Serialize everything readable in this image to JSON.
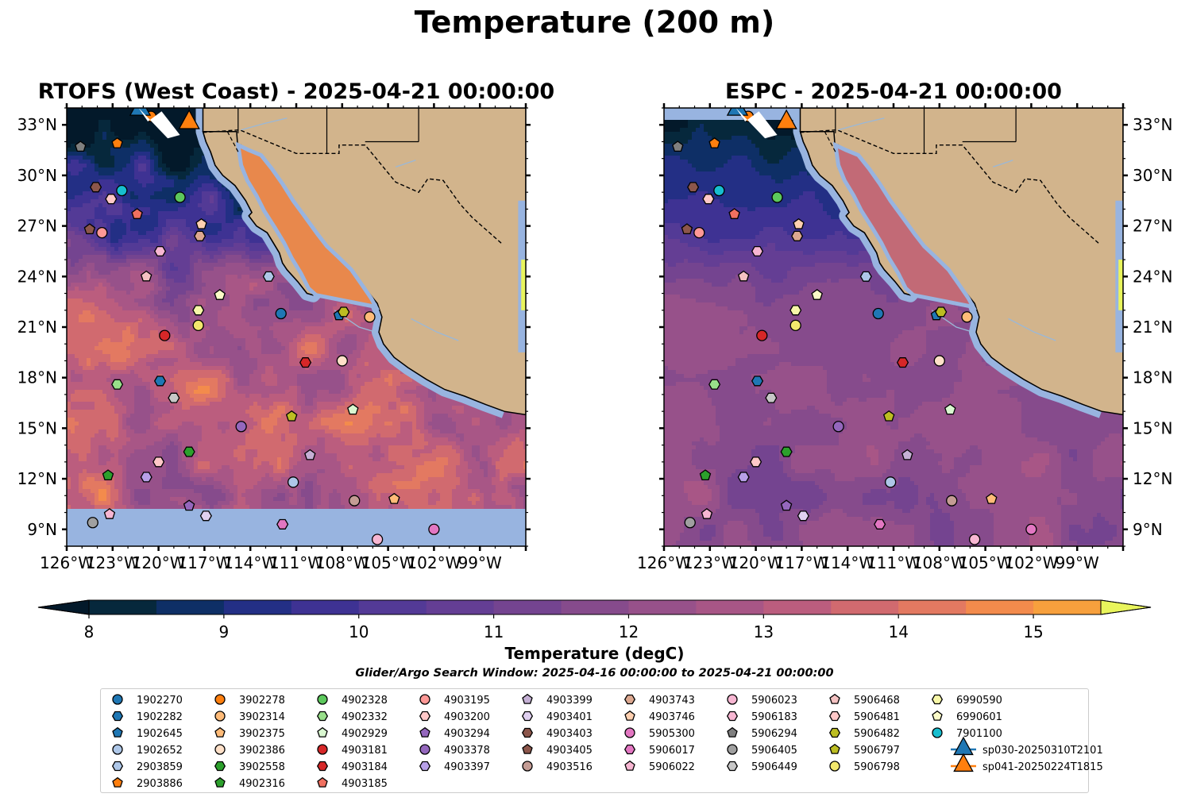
{
  "figure": {
    "suptitle": "Temperature (200 m)",
    "search_window": "Glider/Argo Search Window: 2025-04-16 00:00:00 to 2025-04-21 00:00:00",
    "colorbar_label": "Temperature (degC)"
  },
  "chart_data": [
    {
      "type": "heatmap",
      "title": "RTOFS (West Coast) - 2025-04-21 00:00:00",
      "model": "RTOFS",
      "field": "Temperature at 200 m",
      "xlabel": "",
      "ylabel": "",
      "xlim": [
        -126,
        -96
      ],
      "ylim": [
        8,
        34
      ],
      "x_ticks": [
        "126°W",
        "123°W",
        "120°W",
        "117°W",
        "114°W",
        "111°W",
        "108°W",
        "105°W",
        "102°W",
        "99°W"
      ],
      "y_ticks": [
        "9°N",
        "12°N",
        "15°N",
        "18°N",
        "21°N",
        "24°N",
        "27°N",
        "30°N",
        "33°N"
      ],
      "dominant_range_degC": [
        9.5,
        14.5
      ],
      "notes": "Warm 13-14.5 degC eddies south of 24N; cold 8.5-9.5 degC pool north of 29N; no data (masked) south of ~10N"
    },
    {
      "type": "heatmap",
      "title": "ESPC - 2025-04-21 00:00:00",
      "model": "ESPC",
      "field": "Temperature at 200 m",
      "xlabel": "",
      "ylabel": "",
      "xlim": [
        -126,
        -96
      ],
      "ylim": [
        8,
        34
      ],
      "x_ticks": [
        "126°W",
        "123°W",
        "120°W",
        "117°W",
        "114°W",
        "111°W",
        "108°W",
        "105°W",
        "102°W",
        "99°W"
      ],
      "y_ticks": [
        "9°N",
        "12°N",
        "15°N",
        "18°N",
        "21°N",
        "24°N",
        "27°N",
        "30°N",
        "33°N"
      ],
      "dominant_range_degC": [
        9.5,
        12.5
      ],
      "notes": "Smoother, cooler field (11-12 degC) south of 24N; cold 8.5-9.5 degC north of 28N"
    }
  ],
  "colorbar": {
    "min": 8,
    "max": 15.5,
    "step": 0.5,
    "extend": "both",
    "ticks": [
      8,
      9,
      10,
      11,
      12,
      13,
      14,
      15
    ],
    "colors": [
      "#06283c",
      "#0e2f66",
      "#232f85",
      "#3e3293",
      "#533a96",
      "#643e94",
      "#744490",
      "#864b8c",
      "#97518a",
      "#a85686",
      "#bb5d7e",
      "#d16a6f",
      "#e37961",
      "#f38b4c",
      "#f7a03d",
      "#f5be3c",
      "#f0de48"
    ],
    "under_color": "#03192a",
    "over_color": "#e9f55c"
  },
  "platforms": [
    {
      "id": "1902270",
      "marker": "circle",
      "color": "#1f77b4",
      "lon": -112.0,
      "lat": 21.8
    },
    {
      "id": "1902282",
      "marker": "hexagon",
      "color": "#1f77b4",
      "lon": -119.9,
      "lat": 17.8
    },
    {
      "id": "1902645",
      "marker": "pentagon",
      "color": "#1f77b4",
      "lon": -108.2,
      "lat": 21.7
    },
    {
      "id": "1902652",
      "marker": "circle",
      "color": "#aec7e8",
      "lon": -111.2,
      "lat": 11.8
    },
    {
      "id": "2903859",
      "marker": "hexagon",
      "color": "#aec7e8",
      "lon": -112.8,
      "lat": 24.0
    },
    {
      "id": "2903886",
      "marker": "pentagon",
      "color": "#ff7f0e",
      "lon": -122.7,
      "lat": 31.9
    },
    {
      "id": "3902278",
      "marker": "circle",
      "color": "#ff7f0e",
      "lon": -120.5,
      "lat": 33.5
    },
    {
      "id": "3902314",
      "marker": "circle",
      "color": "#ffbb78",
      "lon": -106.2,
      "lat": 21.6
    },
    {
      "id": "3902375",
      "marker": "pentagon",
      "color": "#ffbb78",
      "lon": -104.6,
      "lat": 10.8
    },
    {
      "id": "3902386",
      "marker": "circle",
      "color": "#ffe0c8",
      "lon": -108.0,
      "lat": 19.0
    },
    {
      "id": "3902558",
      "marker": "hexagon",
      "color": "#2ca02c",
      "lon": -118.0,
      "lat": 13.6
    },
    {
      "id": "4902316",
      "marker": "pentagon",
      "color": "#2ca02c",
      "lon": -123.3,
      "lat": 12.2
    },
    {
      "id": "4902328",
      "marker": "circle",
      "color": "#5cc85c",
      "lon": -118.6,
      "lat": 28.7
    },
    {
      "id": "4902332",
      "marker": "hexagon",
      "color": "#98df8a",
      "lon": -122.7,
      "lat": 17.6
    },
    {
      "id": "4902929",
      "marker": "pentagon",
      "color": "#d9f7d0",
      "lon": -107.3,
      "lat": 16.1
    },
    {
      "id": "4903181",
      "marker": "circle",
      "color": "#d62728",
      "lon": -119.6,
      "lat": 20.5
    },
    {
      "id": "4903184",
      "marker": "hexagon",
      "color": "#d62728",
      "lon": -110.4,
      "lat": 18.9
    },
    {
      "id": "4903185",
      "marker": "pentagon",
      "color": "#f07060",
      "lon": -121.4,
      "lat": 27.7
    },
    {
      "id": "4903195",
      "marker": "circle",
      "color": "#ff9896",
      "lon": -123.7,
      "lat": 26.6
    },
    {
      "id": "4903200",
      "marker": "hexagon",
      "color": "#ffc8c8",
      "lon": -123.1,
      "lat": 28.6
    },
    {
      "id": "4903294",
      "marker": "pentagon",
      "color": "#9467bd",
      "lon": -118.0,
      "lat": 10.4
    },
    {
      "id": "4903378",
      "marker": "circle",
      "color": "#9467bd",
      "lon": -114.6,
      "lat": 15.1
    },
    {
      "id": "4903397",
      "marker": "hexagon",
      "color": "#b8a0e8",
      "lon": -120.8,
      "lat": 12.1
    },
    {
      "id": "4903399",
      "marker": "pentagon",
      "color": "#c5b0d5",
      "lon": -110.1,
      "lat": 13.4
    },
    {
      "id": "4903401",
      "marker": "hexagon",
      "color": "#e0d0f0",
      "lon": -116.9,
      "lat": 9.8
    },
    {
      "id": "4903403",
      "marker": "hexagon",
      "color": "#8c564b",
      "lon": -124.1,
      "lat": 29.3
    },
    {
      "id": "4903405",
      "marker": "pentagon",
      "color": "#8c564b",
      "lon": -124.5,
      "lat": 26.8
    },
    {
      "id": "4903516",
      "marker": "circle",
      "color": "#c49c94",
      "lon": -107.2,
      "lat": 10.7
    },
    {
      "id": "4903743",
      "marker": "hexagon",
      "color": "#dca890",
      "lon": -117.3,
      "lat": 26.4
    },
    {
      "id": "4903746",
      "marker": "pentagon",
      "color": "#ffd0b0",
      "lon": -117.2,
      "lat": 27.1
    },
    {
      "id": "5905300",
      "marker": "circle",
      "color": "#e377c2",
      "lon": -102.0,
      "lat": 9.0
    },
    {
      "id": "5906017",
      "marker": "hexagon",
      "color": "#e377c2",
      "lon": -111.9,
      "lat": 9.3
    },
    {
      "id": "5906022",
      "marker": "pentagon",
      "color": "#f7b6d2",
      "lon": -123.2,
      "lat": 9.9
    },
    {
      "id": "5906023",
      "marker": "circle",
      "color": "#f7b6d2",
      "lon": -105.7,
      "lat": 8.4
    },
    {
      "id": "5906183",
      "marker": "hexagon",
      "color": "#f7b6d2",
      "lon": -119.9,
      "lat": 25.5
    },
    {
      "id": "5906294",
      "marker": "pentagon",
      "color": "#7f7f7f",
      "lon": -125.1,
      "lat": 31.7
    },
    {
      "id": "5906405",
      "marker": "circle",
      "color": "#a0a0a0",
      "lon": -124.3,
      "lat": 9.4
    },
    {
      "id": "5906449",
      "marker": "hexagon",
      "color": "#c7c7c7",
      "lon": -119.0,
      "lat": 16.8
    },
    {
      "id": "5906468",
      "marker": "pentagon",
      "color": "#f4c2c2",
      "lon": -120.8,
      "lat": 24.0
    },
    {
      "id": "5906481",
      "marker": "hexagon",
      "color": "#ffc8c8",
      "lon": -120.0,
      "lat": 13.0
    },
    {
      "id": "5906482",
      "marker": "hexagon",
      "color": "#bcbd22",
      "lon": -107.9,
      "lat": 21.9
    },
    {
      "id": "5906797",
      "marker": "pentagon",
      "color": "#bcbd22",
      "lon": -111.3,
      "lat": 15.7
    },
    {
      "id": "5906798",
      "marker": "circle",
      "color": "#f2e86d",
      "lon": -117.4,
      "lat": 21.1
    },
    {
      "id": "6990590",
      "marker": "hexagon",
      "color": "#f7f7a8",
      "lon": -117.4,
      "lat": 22.0
    },
    {
      "id": "6990601",
      "marker": "pentagon",
      "color": "#fbfbc8",
      "lon": -116.0,
      "lat": 22.9
    },
    {
      "id": "7901100",
      "marker": "circle",
      "color": "#17becf",
      "lon": -122.4,
      "lat": 29.1
    },
    {
      "id": "sp030-20250310T2101",
      "marker": "triangle",
      "color": "#1f77b4",
      "lon": -121.2,
      "lat": 34.0,
      "track": true
    },
    {
      "id": "sp041-20250224T1815",
      "marker": "triangle",
      "color": "#ff7f0e",
      "lon": -118.0,
      "lat": 33.2,
      "track": true
    }
  ],
  "colors": {
    "land": "#d2b48c",
    "ocean_masked": "#98b4e0",
    "rivers": "#9ab8d8"
  }
}
